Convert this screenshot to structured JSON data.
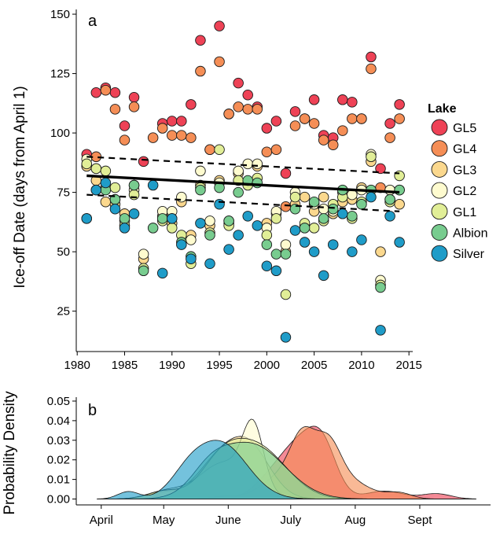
{
  "colors": {
    "GL5": "#EE4256",
    "GL4": "#F58E56",
    "GL3": "#FBD88E",
    "GL2": "#FEFBCF",
    "GL1": "#E1EE97",
    "Albion": "#78CC8F",
    "Silver": "#1F9CC8"
  },
  "chart_data": [
    {
      "panel": "a",
      "type": "scatter",
      "ylabel": "Ice-off Date (days from April 1)",
      "xlabel": "",
      "xlim": [
        1979.9,
        2015.4
      ],
      "ylim": [
        8,
        152
      ],
      "xticks": [
        1980,
        1985,
        1990,
        1995,
        2000,
        2005,
        2010,
        2015
      ],
      "yticks": [
        25,
        50,
        75,
        100,
        125,
        150
      ],
      "grid": false,
      "legend": {
        "title": "Lake",
        "position": "right",
        "entries": [
          "GL5",
          "GL4",
          "GL3",
          "GL2",
          "GL1",
          "Albion",
          "Silver"
        ]
      },
      "trend": {
        "x": [
          1981,
          2014
        ],
        "y": [
          82,
          75
        ]
      },
      "ci_upper": {
        "x": [
          1981,
          2014
        ],
        "y": [
          90,
          83
        ]
      },
      "ci_lower": {
        "x": [
          1981,
          2014
        ],
        "y": [
          74,
          67
        ]
      },
      "series": [
        {
          "name": "GL5",
          "points": [
            [
              1981,
              91
            ],
            [
              1982,
              117
            ],
            [
              1983,
              119
            ],
            [
              1984,
              117
            ],
            [
              1985,
              103
            ],
            [
              1986,
              115
            ],
            [
              1987,
              88
            ],
            [
              1989,
              104
            ],
            [
              1990,
              105
            ],
            [
              1991,
              105
            ],
            [
              1992,
              112
            ],
            [
              1993,
              139
            ],
            [
              1994,
              93
            ],
            [
              1995,
              145
            ],
            [
              1996,
              108
            ],
            [
              1997,
              121
            ],
            [
              1998,
              116
            ],
            [
              1999,
              111
            ],
            [
              2000,
              102
            ],
            [
              2001,
              105
            ],
            [
              2002,
              83
            ],
            [
              2003,
              109
            ],
            [
              2004,
              106
            ],
            [
              2005,
              114
            ],
            [
              2006,
              99
            ],
            [
              2007,
              98
            ],
            [
              2008,
              114
            ],
            [
              2009,
              113
            ],
            [
              2010,
              106
            ],
            [
              2011,
              132
            ],
            [
              2012,
              85
            ],
            [
              2013,
              104
            ],
            [
              2014,
              112
            ]
          ]
        },
        {
          "name": "GL4",
          "points": [
            [
              1981,
              86
            ],
            [
              1982,
              90
            ],
            [
              1983,
              118
            ],
            [
              1984,
              110
            ],
            [
              1985,
              97
            ],
            [
              1986,
              111
            ],
            [
              1988,
              98
            ],
            [
              1989,
              102
            ],
            [
              1990,
              99
            ],
            [
              1991,
              99
            ],
            [
              1992,
              98
            ],
            [
              1993,
              126
            ],
            [
              1994,
              93
            ],
            [
              1995,
              130
            ],
            [
              1996,
              108
            ],
            [
              1997,
              111
            ],
            [
              1998,
              110
            ],
            [
              1999,
              110
            ],
            [
              2000,
              92
            ],
            [
              2001,
              93
            ],
            [
              2002,
              69
            ],
            [
              2003,
              103
            ],
            [
              2004,
              106
            ],
            [
              2005,
              104
            ],
            [
              2006,
              97
            ],
            [
              2007,
              95
            ],
            [
              2008,
              101
            ],
            [
              2009,
              106
            ],
            [
              2010,
              106
            ],
            [
              2011,
              127
            ],
            [
              2012,
              77
            ],
            [
              2013,
              98
            ],
            [
              2014,
              106
            ]
          ]
        },
        {
          "name": "GL3",
          "points": [
            [
              1981,
              86
            ],
            [
              1982,
              80
            ],
            [
              1983,
              71
            ],
            [
              1984,
              70
            ],
            [
              1985,
              66
            ],
            [
              1986,
              78
            ],
            [
              1987,
              47
            ],
            [
              1989,
              65
            ],
            [
              1990,
              62
            ],
            [
              1991,
              71
            ],
            [
              1992,
              57
            ],
            [
              1993,
              78
            ],
            [
              1994,
              61
            ],
            [
              1995,
              80
            ],
            [
              1996,
              62
            ],
            [
              1997,
              83
            ],
            [
              1998,
              79
            ],
            [
              1999,
              86
            ],
            [
              2000,
              62
            ],
            [
              2001,
              66
            ],
            [
              2002,
              50
            ],
            [
              2003,
              70
            ],
            [
              2004,
              73
            ],
            [
              2005,
              67
            ],
            [
              2006,
              73
            ],
            [
              2007,
              66
            ],
            [
              2008,
              71
            ],
            [
              2009,
              72
            ],
            [
              2010,
              77
            ],
            [
              2011,
              88
            ],
            [
              2012,
              50
            ],
            [
              2013,
              72
            ],
            [
              2014,
              70
            ]
          ]
        },
        {
          "name": "GL2",
          "points": [
            [
              1981,
              89
            ],
            [
              1982,
              85
            ],
            [
              1983,
              77
            ],
            [
              1984,
              72
            ],
            [
              1985,
              63
            ],
            [
              1986,
              76
            ],
            [
              1987,
              49
            ],
            [
              1989,
              67
            ],
            [
              1990,
              67
            ],
            [
              1991,
              73
            ],
            [
              1992,
              55
            ],
            [
              1993,
              84
            ],
            [
              1994,
              63
            ],
            [
              1995,
              79
            ],
            [
              1996,
              63
            ],
            [
              1997,
              84
            ],
            [
              1998,
              87
            ],
            [
              1999,
              87
            ],
            [
              2000,
              60
            ],
            [
              2001,
              67
            ],
            [
              2002,
              53
            ],
            [
              2003,
              75
            ],
            [
              2004,
              61
            ],
            [
              2005,
              70
            ],
            [
              2006,
              68
            ],
            [
              2007,
              67
            ],
            [
              2008,
              75
            ],
            [
              2009,
              74
            ],
            [
              2010,
              76
            ],
            [
              2011,
              91
            ],
            [
              2012,
              38
            ],
            [
              2013,
              76
            ],
            [
              2014,
              76
            ]
          ]
        },
        {
          "name": "GL1",
          "points": [
            [
              1981,
              87
            ],
            [
              1982,
              85
            ],
            [
              1983,
              84
            ],
            [
              1984,
              77
            ],
            [
              1985,
              61
            ],
            [
              1986,
              74
            ],
            [
              1987,
              43
            ],
            [
              1989,
              63
            ],
            [
              1990,
              60
            ],
            [
              1991,
              57
            ],
            [
              1992,
              45
            ],
            [
              1993,
              77
            ],
            [
              1994,
              58
            ],
            [
              1995,
              93
            ],
            [
              1996,
              61
            ],
            [
              1997,
              80
            ],
            [
              1998,
              78
            ],
            [
              1999,
              81
            ],
            [
              2000,
              57
            ],
            [
              2001,
              64
            ],
            [
              2002,
              32
            ],
            [
              2003,
              73
            ],
            [
              2004,
              62
            ],
            [
              2005,
              60
            ],
            [
              2006,
              63
            ],
            [
              2007,
              70
            ],
            [
              2008,
              73
            ],
            [
              2009,
              64
            ],
            [
              2010,
              71
            ],
            [
              2011,
              90
            ],
            [
              2012,
              36
            ],
            [
              2013,
              71
            ],
            [
              2014,
              82
            ]
          ]
        },
        {
          "name": "Albion",
          "points": [
            [
              1981,
              64
            ],
            [
              1982,
              76
            ],
            [
              1983,
              76
            ],
            [
              1984,
              72
            ],
            [
              1985,
              64
            ],
            [
              1986,
              78
            ],
            [
              1987,
              42
            ],
            [
              1988,
              60
            ],
            [
              1989,
              64
            ],
            [
              1990,
              64
            ],
            [
              1991,
              54
            ],
            [
              1992,
              48
            ],
            [
              1993,
              76
            ],
            [
              1994,
              57
            ],
            [
              1995,
              77
            ],
            [
              1996,
              63
            ],
            [
              1997,
              75
            ],
            [
              1998,
              80
            ],
            [
              1999,
              79
            ],
            [
              2000,
              53
            ],
            [
              2001,
              49
            ],
            [
              2002,
              49
            ],
            [
              2003,
              68
            ],
            [
              2004,
              60
            ],
            [
              2005,
              71
            ],
            [
              2006,
              64
            ],
            [
              2007,
              68
            ],
            [
              2008,
              76
            ],
            [
              2009,
              65
            ],
            [
              2010,
              70
            ],
            [
              2011,
              76
            ],
            [
              2012,
              35
            ],
            [
              2013,
              72
            ],
            [
              2014,
              76
            ]
          ]
        },
        {
          "name": "Silver",
          "points": [
            [
              1981,
              64
            ],
            [
              1982,
              76
            ],
            [
              1983,
              79
            ],
            [
              1984,
              68
            ],
            [
              1985,
              60
            ],
            [
              1986,
              66
            ],
            [
              1988,
              78
            ],
            [
              1989,
              41
            ],
            [
              1990,
              64
            ],
            [
              1991,
              53
            ],
            [
              1992,
              47
            ],
            [
              1993,
              62
            ],
            [
              1994,
              45
            ],
            [
              1995,
              70
            ],
            [
              1996,
              51
            ],
            [
              1997,
              57
            ],
            [
              1998,
              65
            ],
            [
              1999,
              61
            ],
            [
              2000,
              44
            ],
            [
              2001,
              42
            ],
            [
              2002,
              14
            ],
            [
              2003,
              59
            ],
            [
              2004,
              54
            ],
            [
              2005,
              50
            ],
            [
              2006,
              40
            ],
            [
              2007,
              53
            ],
            [
              2008,
              66
            ],
            [
              2009,
              50
            ],
            [
              2010,
              55
            ],
            [
              2011,
              73
            ],
            [
              2012,
              17
            ],
            [
              2013,
              65
            ],
            [
              2014,
              54
            ]
          ]
        }
      ]
    },
    {
      "panel": "b",
      "type": "area",
      "ylabel": "Probability Density",
      "xlabel": "",
      "xlim": [
        -12,
        187
      ],
      "ylim": [
        -0.003,
        0.052
      ],
      "yticks": [
        0.0,
        0.01,
        0.02,
        0.03,
        0.04,
        0.05
      ],
      "ytick_labels": [
        "0.00",
        "0.01",
        "0.02",
        "0.03",
        "0.04",
        "0.05"
      ],
      "xticks": [
        0,
        30,
        61,
        91,
        122,
        153
      ],
      "xtick_labels": [
        "April",
        "May",
        "June",
        "July",
        "Aug",
        "Sept"
      ],
      "series": [
        {
          "name": "GL5",
          "mode": 106,
          "peak": 0.0372
        },
        {
          "name": "GL4",
          "mode": 97,
          "peak": 0.037
        },
        {
          "name": "GL3",
          "mode": 71,
          "peak": 0.032
        },
        {
          "name": "GL2",
          "mode": 73,
          "peak": 0.0408
        },
        {
          "name": "GL1",
          "mode": 75,
          "peak": 0.031
        },
        {
          "name": "Albion",
          "mode": 72,
          "peak": 0.029
        },
        {
          "name": "Silver",
          "mode": 57,
          "peak": 0.03
        }
      ]
    }
  ]
}
